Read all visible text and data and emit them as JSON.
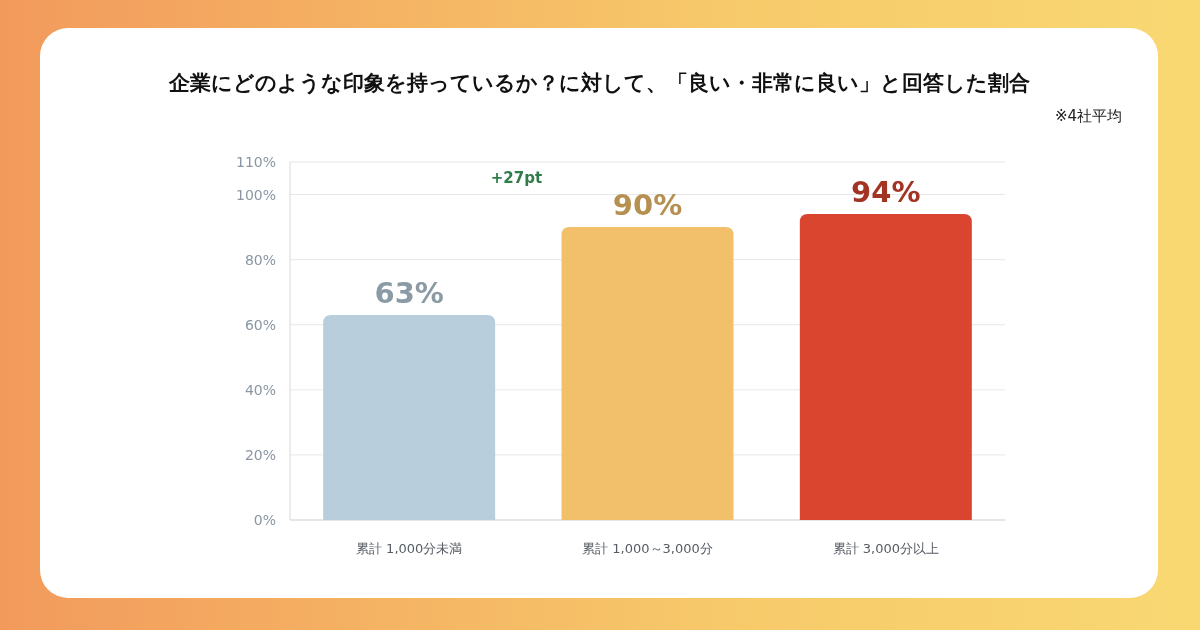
{
  "chart_data": {
    "type": "bar",
    "title": "企業にどのような印象を持っているか？に対して、「良い・非常に良い」と回答した割合",
    "subtitle": "※4社平均",
    "categories": [
      "累計 1,000分未満",
      "累計 1,000～3,000分",
      "累計 3,000分以上"
    ],
    "values": [
      63,
      90,
      94
    ],
    "value_labels": [
      "63%",
      "90%",
      "94%"
    ],
    "colors": [
      "#b8cedc",
      "#f2c06b",
      "#d9452f"
    ],
    "ylim": [
      0,
      110
    ],
    "yticks": [
      {
        "value": 0,
        "label": "0%"
      },
      {
        "value": 20,
        "label": "20%"
      },
      {
        "value": 40,
        "label": "40%"
      },
      {
        "value": 60,
        "label": "60%"
      },
      {
        "value": 80,
        "label": "80%"
      },
      {
        "value": 100,
        "label": "100%"
      },
      {
        "value": 110,
        "label": "110%"
      }
    ],
    "grid": "y",
    "annotations": [
      "+27pt"
    ]
  }
}
